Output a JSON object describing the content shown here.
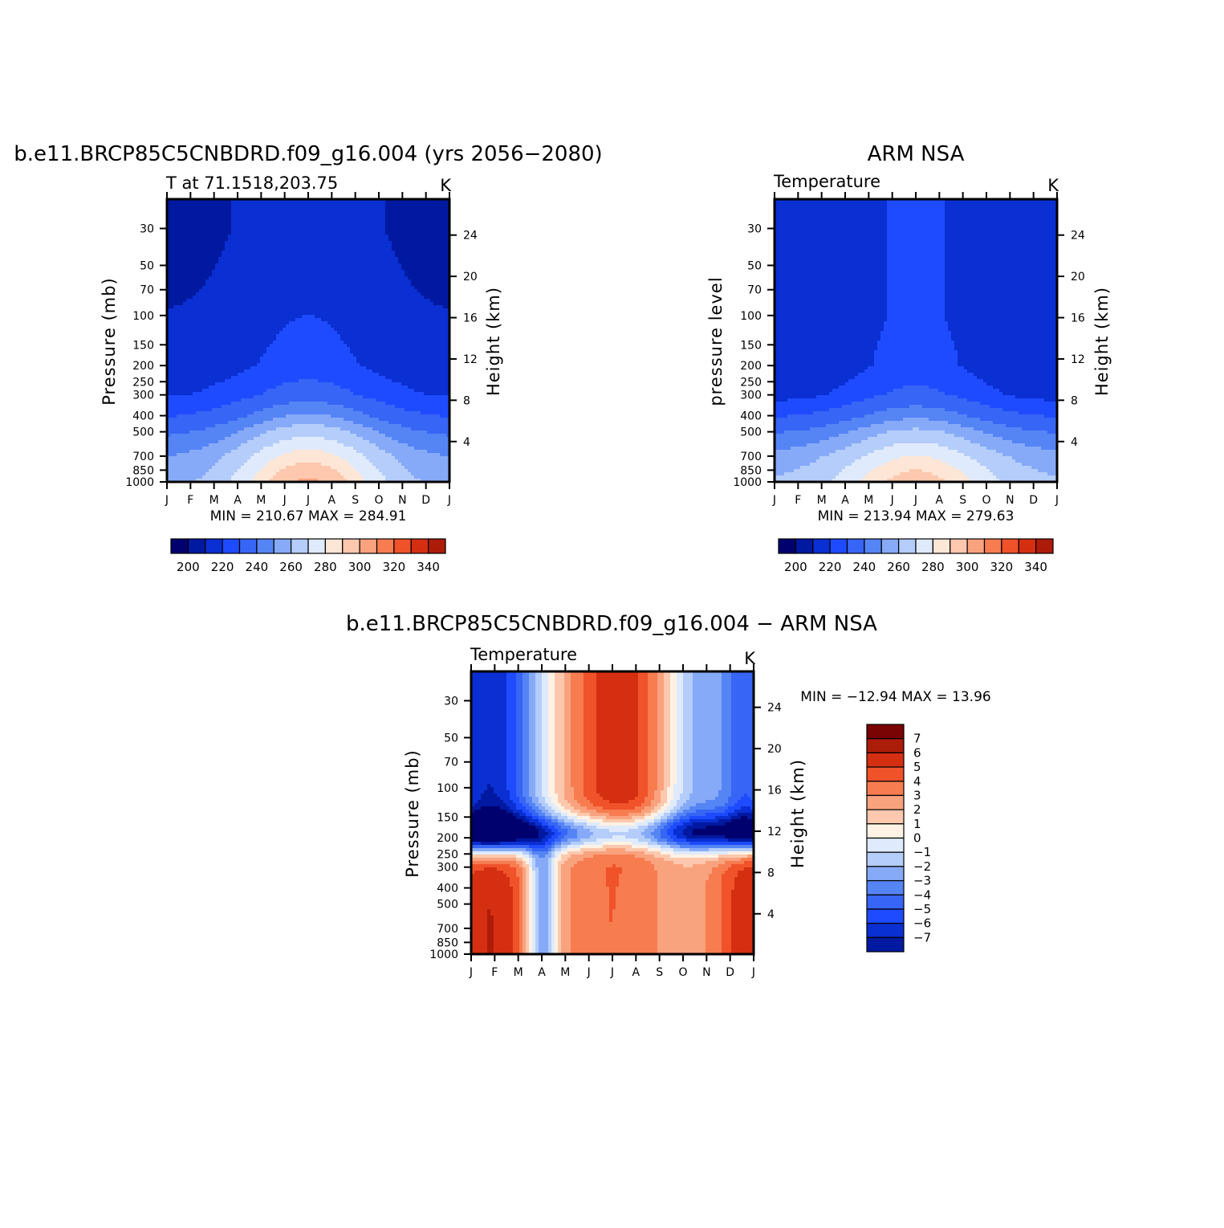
{
  "panels": [
    {
      "main_title": "b.e11.BRCP85C5CNBDRD.f09_g16.004 (yrs 2056−2080)",
      "left_string": "T at 71.1518,203.75",
      "right_string": "K",
      "y_label": "Pressure (mb)",
      "y2_label": "Height (km)",
      "minmax": "MIN = 210.67 MAX = 284.91",
      "colorbar_labels": [
        "200",
        "220",
        "240",
        "260",
        "280",
        "300",
        "320",
        "340"
      ]
    },
    {
      "main_title": "ARM NSA",
      "left_string": "Temperature",
      "right_string": "K",
      "y_label": "pressure level",
      "y2_label": "Height (km)",
      "minmax": "MIN = 213.94 MAX = 279.63",
      "colorbar_labels": [
        "200",
        "220",
        "240",
        "260",
        "280",
        "300",
        "320",
        "340"
      ]
    },
    {
      "main_title": "b.e11.BRCP85C5CNBDRD.f09_g16.004 − ARM NSA",
      "left_string": "Temperature",
      "right_string": "K",
      "y_label": "Pressure (mb)",
      "y2_label": "Height (km)",
      "minmax": "MIN = −12.94 MAX =  13.96",
      "colorbar_labels": [
        "7",
        "6",
        "5",
        "4",
        "3",
        "2",
        "1",
        "0",
        "−1",
        "−2",
        "−3",
        "−4",
        "−5",
        "−6",
        "−7"
      ]
    }
  ],
  "chart_data": [
    {
      "type": "heatmap",
      "title": "b.e11.BRCP85C5CNBDRD.f09_g16.004 (yrs 2056−2080)",
      "subtitle": "T at 71.1518,203.75",
      "units": "K",
      "x_tick_labels": [
        "J",
        "F",
        "M",
        "A",
        "M",
        "J",
        "J",
        "A",
        "S",
        "O",
        "N",
        "D",
        "J"
      ],
      "y_ticks": [
        30,
        50,
        70,
        100,
        150,
        200,
        250,
        300,
        400,
        500,
        700,
        850,
        1000
      ],
      "y_range": [
        20,
        1000
      ],
      "y_scale": "log",
      "y2_ticks": [
        24,
        20,
        16,
        12,
        8,
        4
      ],
      "ylabel": "Pressure (mb)",
      "y2label": "Height (km)",
      "min": 210.67,
      "max": 284.91,
      "contour_levels": [
        195,
        200,
        205,
        210,
        215,
        220,
        225,
        230,
        235,
        240,
        245,
        250,
        255,
        260,
        265,
        270,
        275,
        280,
        285,
        290,
        295,
        300,
        305,
        310,
        315,
        320,
        325,
        330,
        335,
        340,
        345
      ],
      "colormap": [
        "#00006e",
        "#0019a0",
        "#0a2fd2",
        "#1e4bff",
        "#3765f5",
        "#5584f5",
        "#86aaf8",
        "#b4cdfa",
        "#dfeafc",
        "#fde6d6",
        "#fdc8ad",
        "#f9a27e",
        "#f77c50",
        "#f0522a",
        "#d52f12",
        "#ad1c09",
        "#7a0303"
      ],
      "monthly_min_profile": {
        "levels": [
          1000,
          850,
          700,
          500,
          400,
          300,
          200,
          100,
          30
        ],
        "values": [
          248,
          246,
          244,
          236,
          229,
          222,
          218,
          215,
          211
        ]
      },
      "monthly_max_profile": {
        "levels": [
          1000,
          850,
          700,
          500,
          400,
          300,
          200,
          100,
          30
        ],
        "values": [
          283,
          279,
          272,
          257,
          246,
          234,
          226,
          223,
          222
        ]
      }
    },
    {
      "type": "heatmap",
      "title": "ARM NSA",
      "subtitle": "Temperature",
      "units": "K",
      "x_tick_labels": [
        "J",
        "F",
        "M",
        "A",
        "M",
        "J",
        "J",
        "A",
        "S",
        "O",
        "N",
        "D",
        "J"
      ],
      "y_ticks": [
        30,
        50,
        70,
        100,
        150,
        200,
        250,
        300,
        400,
        500,
        700,
        850,
        1000
      ],
      "y_range": [
        20,
        1000
      ],
      "y_scale": "log",
      "y2_ticks": [
        24,
        20,
        16,
        12,
        8,
        4
      ],
      "ylabel": "pressure level",
      "y2label": "Height (km)",
      "min": 213.94,
      "max": 279.63,
      "colormap": [
        "#00006e",
        "#0019a0",
        "#0a2fd2",
        "#1e4bff",
        "#3765f5",
        "#5584f5",
        "#86aaf8",
        "#b4cdfa",
        "#dfeafc",
        "#fde6d6",
        "#fdc8ad",
        "#f9a27e",
        "#f77c50",
        "#f0522a",
        "#d52f12",
        "#ad1c09",
        "#7a0303"
      ],
      "monthly_min_profile": {
        "levels": [
          1000,
          850,
          700,
          500,
          400,
          300,
          200,
          100,
          30
        ],
        "values": [
          252,
          250,
          247,
          237,
          229,
          220,
          215,
          216,
          216
        ]
      },
      "monthly_max_profile": {
        "levels": [
          1000,
          850,
          700,
          500,
          400,
          300,
          200,
          100,
          30
        ],
        "values": [
          279,
          275,
          268,
          254,
          243,
          232,
          226,
          224,
          224
        ]
      }
    },
    {
      "type": "heatmap",
      "title": "b.e11.BRCP85C5CNBDRD.f09_g16.004 − ARM NSA",
      "subtitle": "Temperature",
      "units": "K",
      "x_tick_labels": [
        "J",
        "F",
        "M",
        "A",
        "M",
        "J",
        "J",
        "A",
        "S",
        "O",
        "N",
        "D",
        "J"
      ],
      "y_ticks": [
        30,
        50,
        70,
        100,
        150,
        200,
        250,
        300,
        400,
        500,
        700,
        850,
        1000
      ],
      "y_range": [
        20,
        1000
      ],
      "y_scale": "log",
      "y2_ticks": [
        24,
        20,
        16,
        12,
        8,
        4
      ],
      "ylabel": "Pressure (mb)",
      "y2label": "Height (km)",
      "min": -12.94,
      "max": 13.96,
      "contour_levels": [
        -7,
        -6,
        -5,
        -4,
        -3,
        -2,
        -1,
        0,
        1,
        2,
        3,
        4,
        5,
        6,
        7
      ],
      "colormap": [
        "#00006e",
        "#0019a0",
        "#0a2fd2",
        "#1e4bff",
        "#3765f5",
        "#5584f5",
        "#86aaf8",
        "#b4cdfa",
        "#dfeafc",
        "#fff2e4",
        "#fdc8ad",
        "#f9a27e",
        "#f77c50",
        "#f0522a",
        "#d52f12",
        "#ad1c09",
        "#7a0303"
      ]
    }
  ]
}
